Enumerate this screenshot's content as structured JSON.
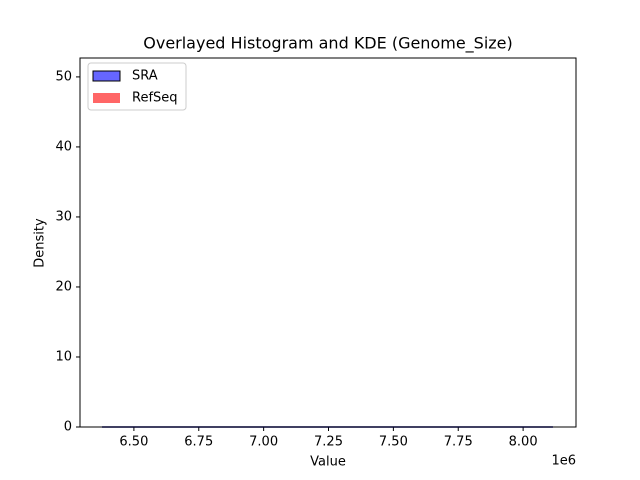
{
  "chart_data": {
    "type": "histogram",
    "title": "Overlayed Histogram and KDE (Genome_Size)",
    "xlabel": "Value",
    "ylabel": "Density",
    "x_offset_label": "1e6",
    "bins": [
      6377000,
      6811500,
      7246000,
      7680500,
      8115000
    ],
    "series": [
      {
        "name": "SRA",
        "color": "#0000ff",
        "edgecolor": "#000000",
        "values": [
          0,
          0,
          0,
          0
        ]
      },
      {
        "name": "RefSeq",
        "color": "#ff0000",
        "values": [
          0,
          0,
          0,
          0
        ]
      }
    ],
    "kde": {
      "x": [
        6377000,
        6811500,
        7246000,
        7680500,
        8115000
      ],
      "values": [
        0,
        0,
        0,
        0,
        0
      ],
      "color": "#00008b"
    },
    "xlim": [
      6292300,
      8203800
    ],
    "ylim": [
      0,
      52.7
    ],
    "xticks": [
      {
        "value": 6500000,
        "label": "6.50"
      },
      {
        "value": 6750000,
        "label": "6.75"
      },
      {
        "value": 7000000,
        "label": "7.00"
      },
      {
        "value": 7250000,
        "label": "7.25"
      },
      {
        "value": 7500000,
        "label": "7.50"
      },
      {
        "value": 7750000,
        "label": "7.75"
      },
      {
        "value": 8000000,
        "label": "8.00"
      }
    ],
    "yticks": [
      0,
      10,
      20,
      30,
      40,
      50
    ],
    "legend": "upper left"
  }
}
